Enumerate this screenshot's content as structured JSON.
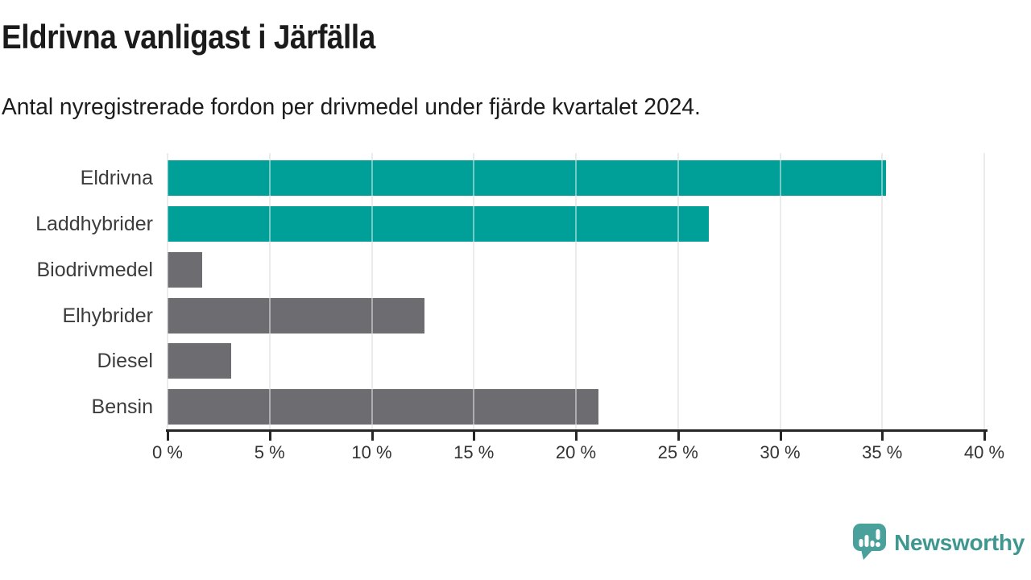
{
  "header": {
    "title": "Eldrivna vanligast i Järfälla",
    "subtitle": "Antal nyregistrerade fordon per drivmedel under fjärde kvartalet 2024."
  },
  "chart_data": {
    "type": "bar",
    "orientation": "horizontal",
    "title": "Eldrivna vanligast i Järfälla",
    "subtitle": "Antal nyregistrerade fordon per drivmedel under fjärde kvartalet 2024.",
    "categories": [
      "Eldrivna",
      "Laddhybrider",
      "Biodrivmedel",
      "Elhybrider",
      "Diesel",
      "Bensin"
    ],
    "values": [
      35.2,
      26.5,
      1.7,
      12.6,
      3.1,
      21.1
    ],
    "unit": "%",
    "bar_colors": [
      "#00a099",
      "#00a099",
      "#6c6c71",
      "#6c6c71",
      "#6c6c71",
      "#6c6c71"
    ],
    "xlim": [
      0,
      40
    ],
    "x_ticks": [
      0,
      5,
      10,
      15,
      20,
      25,
      30,
      35,
      40
    ],
    "x_tick_suffix": " %",
    "grid": "vertical-gridlines-on",
    "legend": "none"
  },
  "branding": {
    "logo_text": "Newsworthy",
    "icon": "newsworthy-speech-bubble-bar-chart-icon",
    "icon_color": "#4aa09b",
    "wordmark_color": "#3f9790"
  },
  "colors": {
    "accent_teal": "#00a099",
    "neutral_gray": "#6c6c71",
    "axis": "#262626",
    "gridline": "#dadada",
    "title_text": "#1b1b1b",
    "label_text": "#3c3c3c",
    "tick_text": "#333333",
    "background": "#ffffff"
  }
}
